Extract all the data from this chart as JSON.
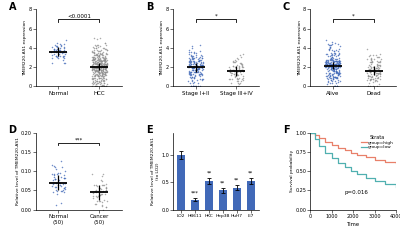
{
  "panel_A": {
    "label": "A",
    "group1_name": "Normal",
    "group2_name": "HCC",
    "group1_n": 50,
    "group2_n": 374,
    "group1_mean": 3.7,
    "group2_mean": 2.2,
    "group1_std": 0.7,
    "group2_std": 1.1,
    "group1_color": "#4169b8",
    "group2_color": "#909090",
    "ylabel": "TMEM220-AS1 expression",
    "ymin": 0,
    "ymax": 8,
    "yticks": [
      0,
      2,
      4,
      6,
      8
    ],
    "pvalue": "<0.0001"
  },
  "panel_B": {
    "label": "B",
    "group1_name": "Stage I+II",
    "group2_name": "Stage III+IV",
    "group1_n": 170,
    "group2_n": 80,
    "group1_mean": 2.1,
    "group2_mean": 1.7,
    "group1_std": 0.9,
    "group2_std": 0.8,
    "group1_color": "#4169b8",
    "group2_color": "#909090",
    "ylabel": "TMEM220-AS1 expression",
    "ymin": 0,
    "ymax": 8,
    "yticks": [
      0,
      2,
      4,
      6,
      8
    ],
    "pvalue": "*"
  },
  "panel_C": {
    "label": "C",
    "group1_name": "Alive",
    "group2_name": "Dead",
    "group1_n": 250,
    "group2_n": 120,
    "group1_mean": 2.1,
    "group2_mean": 1.6,
    "group1_std": 1.0,
    "group2_std": 0.9,
    "group1_color": "#4169b8",
    "group2_color": "#909090",
    "ylabel": "TMEM220-AS1 expression",
    "ymin": 0,
    "ymax": 8,
    "yticks": [
      0,
      2,
      4,
      6,
      8
    ],
    "pvalue": "*"
  },
  "panel_D": {
    "label": "D",
    "group1_name": "Normal\n(50)",
    "group2_name": "Cancer\n(50)",
    "group1_n": 50,
    "group2_n": 50,
    "group1_mean": 0.075,
    "group2_mean": 0.045,
    "group1_std": 0.025,
    "group2_std": 0.022,
    "group1_color": "#4169b8",
    "group2_color": "#909090",
    "ylabel": "Relative level of TMEM220-AS1",
    "ymin": 0.0,
    "ymax": 0.2,
    "yticks": [
      0.0,
      0.05,
      0.1,
      0.15,
      0.2
    ],
    "pvalue": "***"
  },
  "panel_E": {
    "label": "E",
    "categories": [
      "LO2",
      "HB611",
      "HKC",
      "Hep3B",
      "HuH7",
      "LI7"
    ],
    "values": [
      1.0,
      0.18,
      0.52,
      0.35,
      0.4,
      0.52
    ],
    "errors": [
      0.07,
      0.03,
      0.05,
      0.04,
      0.04,
      0.05
    ],
    "bar_color": "#4169b8",
    "ylabel": "Relative level of TMEM220-AS1\n(to LO2)",
    "ymin": 0,
    "ymax": 1.4,
    "yticks": [
      0.0,
      0.5,
      1.0
    ],
    "significance": [
      "",
      "***",
      "**",
      "**",
      "**",
      "**"
    ]
  },
  "panel_F": {
    "label": "F",
    "strata_label": "Strata",
    "group_high": "group=high",
    "group_low": "group=low",
    "color_high": "#E8806A",
    "color_low": "#50B0B0",
    "xlabel": "Time",
    "ylabel": "Survival probability",
    "xmin": 0,
    "xmax": 4000,
    "xticks": [
      0,
      1000,
      2000,
      3000,
      4000
    ],
    "ymin": 0,
    "ymax": 1.0,
    "yticks": [
      0.0,
      0.25,
      0.5,
      0.75,
      1.0
    ],
    "pvalue": "p=0.016",
    "t_high": [
      0,
      200,
      400,
      700,
      1000,
      1300,
      1600,
      1900,
      2200,
      2600,
      3000,
      3500,
      4000
    ],
    "s_high": [
      1.0,
      0.97,
      0.93,
      0.88,
      0.84,
      0.8,
      0.77,
      0.74,
      0.71,
      0.68,
      0.65,
      0.62,
      0.6
    ],
    "t_low": [
      0,
      200,
      400,
      700,
      1000,
      1300,
      1600,
      1900,
      2200,
      2600,
      3000,
      3500,
      4000
    ],
    "s_low": [
      1.0,
      0.92,
      0.83,
      0.74,
      0.67,
      0.61,
      0.55,
      0.5,
      0.46,
      0.41,
      0.37,
      0.33,
      0.3
    ]
  },
  "bg_color": "#ffffff"
}
